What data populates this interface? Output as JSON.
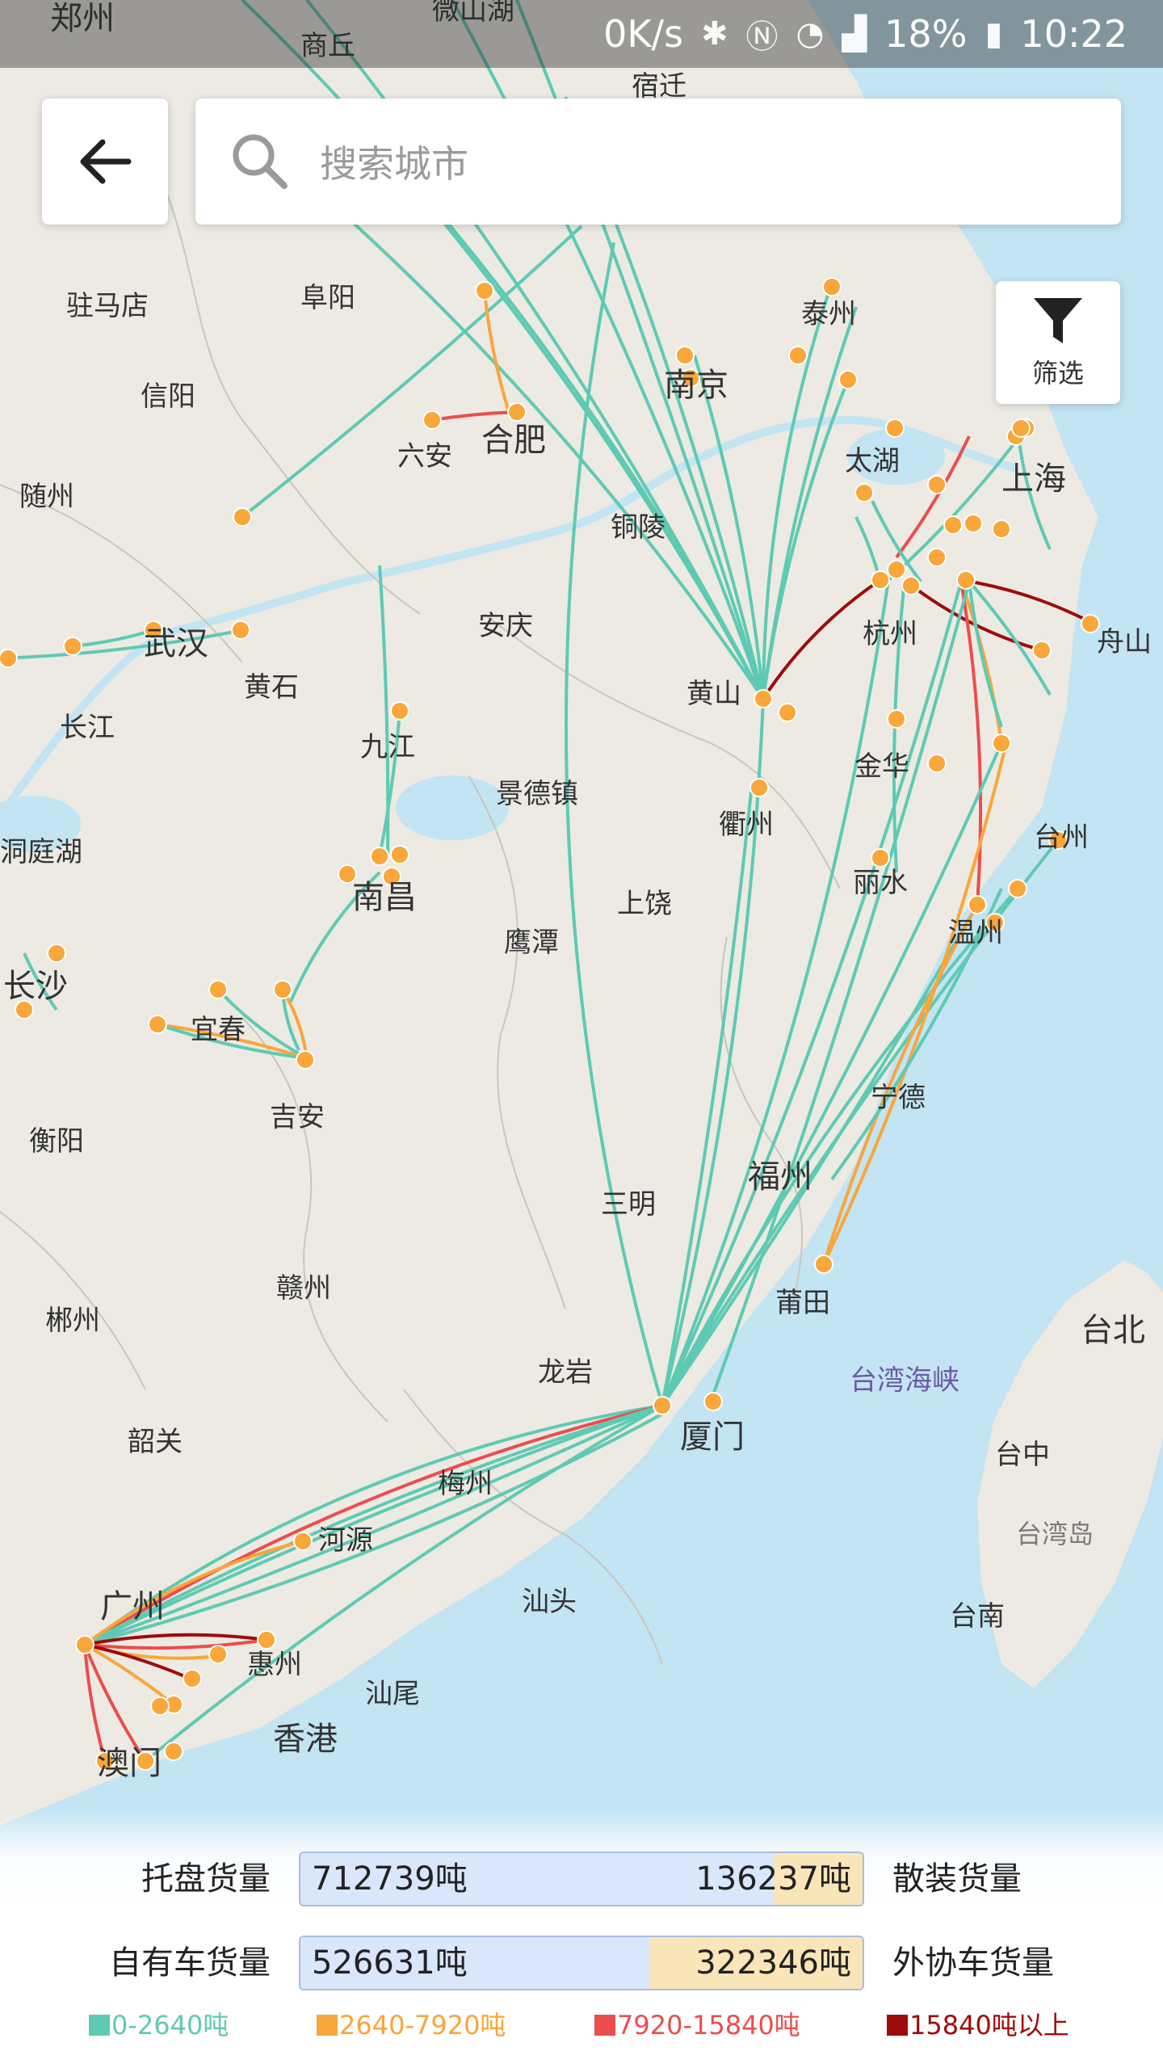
{
  "status_bar": {
    "speed": "0K/s",
    "battery": "18%",
    "time": "10:22"
  },
  "search": {
    "placeholder": "搜索城市"
  },
  "filter": {
    "label": "筛选"
  },
  "colors": {
    "land": "#eceae3",
    "sea": "#c3e4f2",
    "teal": "#5ecab3",
    "orange": "#f9a63a",
    "red": "#ec4d4d",
    "darkred": "#9e0b0b",
    "node": "#f9a63a"
  },
  "map_labels": [
    "郑州",
    "商丘",
    "微山湖",
    "宿迁",
    "驻马店",
    "阜阳",
    "泰州",
    "信阳",
    "六安",
    "合肥",
    "南京",
    "随州",
    "太湖",
    "上海",
    "铜陵",
    "安庆",
    "武汉",
    "黄石",
    "黄山",
    "杭州",
    "舟山",
    "长江",
    "九江",
    "景德镇",
    "金华",
    "衢州",
    "台州",
    "洞庭湖",
    "南昌",
    "鹰潭",
    "上饶",
    "丽水",
    "温州",
    "长沙",
    "宜春",
    "吉安",
    "宁德",
    "衡阳",
    "三明",
    "福州",
    "莆田",
    "台北",
    "赣州",
    "郴州",
    "龙岩",
    "台湾海峡",
    "韶关",
    "梅州",
    "厦门",
    "台中",
    "河源",
    "台湾岛",
    "汕头",
    "广州",
    "惠州",
    "台南",
    "汕尾",
    "香港",
    "澳门"
  ],
  "stats": {
    "row1": {
      "left_label": "托盘货量",
      "left_value": "712739吨",
      "right_value": "136237吨",
      "right_label": "散装货量",
      "right_share": 0.16
    },
    "row2": {
      "left_label": "自有车货量",
      "left_value": "526631吨",
      "right_value": "322346吨",
      "right_label": "外协车货量",
      "right_share": 0.38
    }
  },
  "legend": [
    {
      "label": "0-2640吨",
      "color": "#5ecab3"
    },
    {
      "label": "2640-7920吨",
      "color": "#f9a63a"
    },
    {
      "label": "7920-15840吨",
      "color": "#ec4d4d"
    },
    {
      "label": "15840吨以上",
      "color": "#9e0b0b"
    }
  ]
}
